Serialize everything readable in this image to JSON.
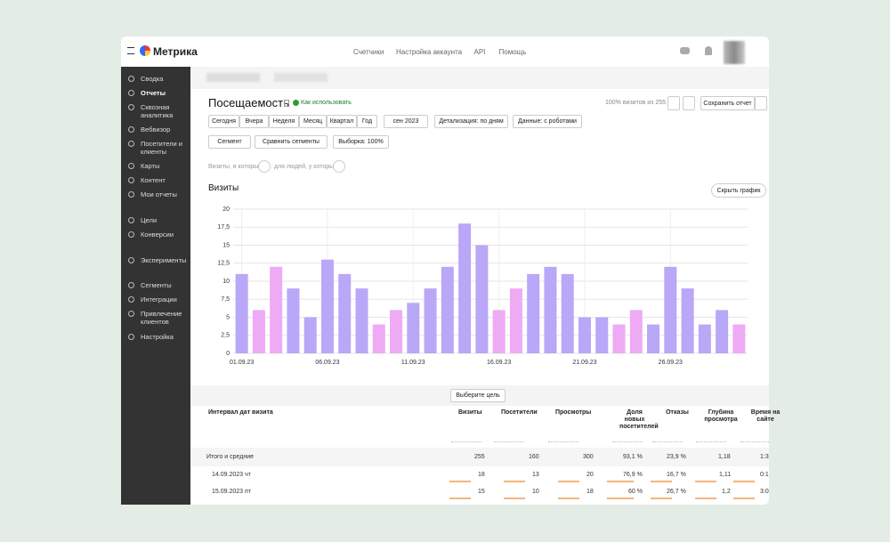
{
  "topbar": {
    "logo": "Метрика",
    "nav": [
      "Счетчики",
      "Настройка аккаунта",
      "API",
      "Помощь"
    ]
  },
  "sidebar": [
    "Сводка",
    "Отчеты",
    "Сквозная аналитика",
    "Вебвизор",
    "Посетители и клиенты",
    "Карты",
    "Контент",
    "Мои отчеты",
    "Цели",
    "Конверсии",
    "Эксперименты",
    "Сегменты",
    "Интеграции",
    "Привлечение клиентов",
    "Настройка"
  ],
  "report": {
    "title": "Посещаемость",
    "how_to": "Как использовать",
    "visits_share": "100% визитов из 255",
    "save": "Сохранить отчет",
    "periods": [
      "Сегодня",
      "Вчера",
      "Неделя",
      "Месяц",
      "Квартал",
      "Год"
    ],
    "month": "сен 2023",
    "detail": "Детализация: по дням",
    "data_mode": "Данные: с роботами",
    "segment": "Сегмент",
    "compare": "Сравнить сегменты",
    "sample": "Выборка: 100%",
    "filter_visits": "Визиты, в которых",
    "filter_people": "для людей, у которых",
    "hide_chart": "Скрыть график"
  },
  "chart_data": {
    "type": "bar",
    "title": "Визиты",
    "categories": [
      "01.09.23",
      null,
      null,
      null,
      null,
      "06.09.23",
      null,
      null,
      null,
      null,
      "11.09.23",
      null,
      null,
      null,
      null,
      "16.09.23",
      null,
      null,
      null,
      null,
      "21.09.23",
      null,
      null,
      null,
      null,
      "26.09.23",
      null,
      null,
      null,
      null
    ],
    "values": [
      11,
      6,
      12,
      9,
      5,
      13,
      11,
      9,
      4,
      6,
      7,
      9,
      12,
      18,
      15,
      6,
      9,
      11,
      12,
      11,
      5,
      5,
      4,
      6,
      4,
      12,
      9,
      4,
      6,
      4
    ],
    "colors": [
      "#b9a7f7",
      "#eeaaf5",
      "#eeaaf5",
      "#b9a7f7",
      "#b9a7f7",
      "#b9a7f7",
      "#b9a7f7",
      "#b9a7f7",
      "#eeaaf5",
      "#eeaaf5",
      "#b9a7f7",
      "#b9a7f7",
      "#b9a7f7",
      "#b9a7f7",
      "#b9a7f7",
      "#eeaaf5",
      "#eeaaf5",
      "#b9a7f7",
      "#b9a7f7",
      "#b9a7f7",
      "#b9a7f7",
      "#b9a7f7",
      "#eeaaf5",
      "#eeaaf5",
      "#b9a7f7",
      "#b9a7f7",
      "#b9a7f7",
      "#b9a7f7",
      "#b9a7f7",
      "#eeaaf5"
    ],
    "ylim": [
      0,
      20
    ],
    "yticks": [
      0,
      {
        "value": 2.5,
        "label": "2,5"
      },
      5,
      {
        "value": 7.5,
        "label": "7,5"
      },
      10,
      {
        "value": 12.5,
        "label": "12,5"
      },
      15,
      {
        "value": 17.5,
        "label": "17,5"
      },
      20
    ],
    "grid": true
  },
  "table": {
    "goal": "Выберите цель",
    "header": [
      "Интервал дат визита",
      "Визиты",
      "Посетители",
      "Просмотры",
      "Доля новых посетителей",
      "Отказы",
      "Глубина просмотра",
      "Время на сайте"
    ],
    "rows": [
      [
        "Итого и средние",
        "255",
        "160",
        "300",
        "93,1 %",
        "23,9 %",
        "1,18",
        "1:3"
      ],
      [
        "14.09.2023 чт",
        "18",
        "13",
        "20",
        "76,9 %",
        "16,7 %",
        "1,11",
        "0:1"
      ],
      [
        "15.09.2023 пт",
        "15",
        "10",
        "18",
        "60 %",
        "26,7 %",
        "1,2",
        "3:0"
      ]
    ]
  }
}
